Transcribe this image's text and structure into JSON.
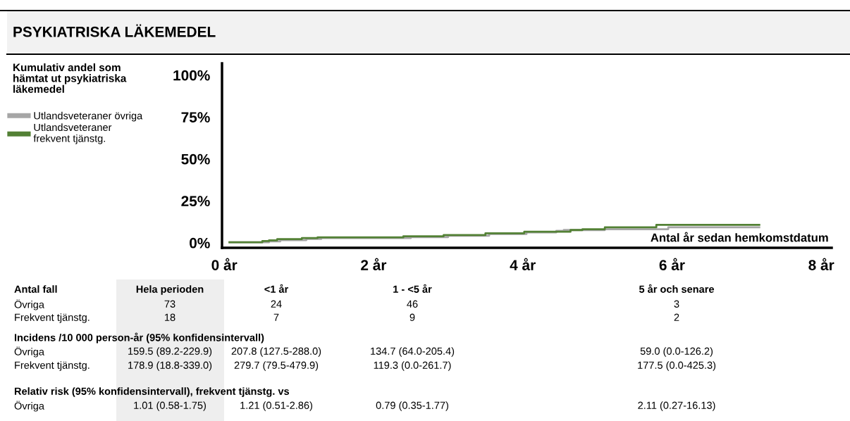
{
  "chart_data": {
    "type": "step",
    "title": "PSYKIATRISKA LÄKEMEDEL",
    "legend_title": "Kumulativ andel som\nhämtat ut psykiatriska\nläkemedel",
    "xlabel": "Antal år sedan hemkomstdatum",
    "series": [
      {
        "name": "Utlandsveteraner övriga",
        "color": "#a6a6a6",
        "x": [
          0.07,
          0.6,
          0.75,
          1.1,
          1.3,
          2.5,
          3.0,
          3.55,
          4.05,
          4.45,
          4.55,
          5.1,
          5.95,
          7.17
        ],
        "values": [
          0.3,
          0.8,
          1.6,
          2.3,
          2.8,
          3.4,
          4.2,
          5.2,
          6.2,
          7.1,
          7.6,
          8.1,
          9.2,
          9.2
        ]
      },
      {
        "name": "Utlandsveteraner\nfrekvent tjänstg.",
        "color": "#538135",
        "x": [
          0.07,
          0.51,
          0.6,
          0.71,
          1.04,
          1.25,
          2.4,
          2.94,
          3.5,
          4.02,
          4.64,
          4.8,
          5.1,
          5.79,
          7.17
        ],
        "values": [
          0.3,
          1.0,
          1.5,
          2.2,
          2.8,
          3.2,
          3.9,
          4.6,
          5.7,
          6.6,
          7.6,
          8.1,
          9.2,
          10.7,
          10.7
        ]
      }
    ],
    "xlim": [
      -0.03,
      8.14
    ],
    "ylim": [
      -3,
      107
    ],
    "xticks": [
      {
        "value": 0,
        "label": "0 år"
      },
      {
        "value": 2,
        "label": "2 år"
      },
      {
        "value": 4,
        "label": "4 år"
      },
      {
        "value": 6,
        "label": "6 år"
      },
      {
        "value": 8,
        "label": "8 år"
      }
    ],
    "yticks": [
      {
        "value": 0,
        "label": "0%"
      },
      {
        "value": 25,
        "label": "25%"
      },
      {
        "value": 50,
        "label": "50%"
      },
      {
        "value": 75,
        "label": "75%"
      },
      {
        "value": 100,
        "label": "100%"
      }
    ],
    "legend": "top left",
    "grid": false,
    "annotations": [
      "Antal fall",
      "Hela perioden",
      "<1 år",
      "1 - <5 år",
      "5 år och senare",
      "Övriga",
      "73",
      "24",
      "46",
      "3",
      "Frekvent tjänstg.",
      "18",
      "7",
      "9",
      "2",
      "Incidens /10 000 person-år (95% konfidensintervall)",
      "Övriga",
      "159.5 (89.2-229.9)",
      "207.8 (127.5-288.0)",
      "134.7 (64.0-205.4)",
      "59.0 (0.0-126.2)",
      "Frekvent tjänstg.",
      "178.9 (18.8-339.0)",
      "279.7 (79.5-479.9)",
      "119.3 (0.0-261.7)",
      "177.5 (0.0-425.3)",
      "Relativ risk (95% konfidensintervall), frekvent tjänstg. vs",
      "Övriga",
      "1.01 (0.58-1.75)",
      "1.21 (0.51-2.86)",
      "0.79 (0.35-1.77)",
      "2.11 (0.27-16.13)"
    ]
  }
}
